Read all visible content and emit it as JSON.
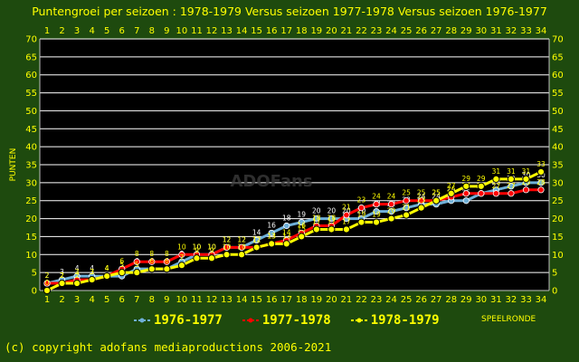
{
  "header": {
    "title": "Puntengroei per seizoen : 1978-1979 Versus seizoen 1977-1978 Versus seizoen 1976-1977"
  },
  "footer": {
    "copyright": "(c) copyright adofans mediaproductions 2006-2021"
  },
  "watermark": "ADOFans",
  "colors": {
    "background": "#1e4a0e",
    "plot_background": "#000000",
    "gridline": "#ffffff",
    "text": "#ffff00"
  },
  "chart_data": {
    "type": "line",
    "title": "Puntengroei per seizoen : 1978-1979 Versus seizoen 1977-1978 Versus seizoen 1976-1977",
    "xlabel": "SPEELRONDE",
    "ylabel": "PUNTEN",
    "x": [
      1,
      2,
      3,
      4,
      5,
      6,
      7,
      8,
      9,
      10,
      11,
      12,
      13,
      14,
      15,
      16,
      17,
      18,
      19,
      20,
      21,
      22,
      23,
      24,
      25,
      26,
      27,
      28,
      29,
      30,
      31,
      32,
      33,
      34
    ],
    "xlim": [
      1,
      34
    ],
    "ylim": [
      0,
      70
    ],
    "yticks": [
      0,
      5,
      10,
      15,
      20,
      25,
      30,
      35,
      40,
      45,
      50,
      55,
      60,
      65,
      70
    ],
    "grid": true,
    "legend_position": "bottom",
    "series": [
      {
        "name": "1976-1977",
        "color": "#6fb0d8",
        "values": [
          2,
          3,
          4,
          4,
          4,
          4,
          6,
          6,
          6,
          8,
          10,
          10,
          12,
          12,
          14,
          16,
          18,
          19,
          20,
          20,
          20,
          20,
          22,
          22,
          23,
          24,
          24,
          25,
          25,
          27,
          28,
          29,
          30,
          30
        ]
      },
      {
        "name": "1977-1978",
        "color": "#ff0000",
        "values": [
          2,
          2,
          3,
          3,
          4,
          6,
          8,
          8,
          8,
          10,
          10,
          10,
          12,
          12,
          12,
          13,
          14,
          16,
          18,
          18,
          21,
          23,
          24,
          24,
          25,
          25,
          25,
          26,
          27,
          27,
          27,
          27,
          28,
          28
        ]
      },
      {
        "name": "1978-1979",
        "color": "#ffff00",
        "values": [
          0,
          2,
          2,
          3,
          4,
          5,
          5,
          6,
          6,
          7,
          9,
          9,
          10,
          10,
          12,
          13,
          13,
          15,
          17,
          17,
          17,
          19,
          19,
          20,
          21,
          23,
          25,
          27,
          29,
          29,
          31,
          31,
          31,
          33
        ]
      }
    ]
  }
}
